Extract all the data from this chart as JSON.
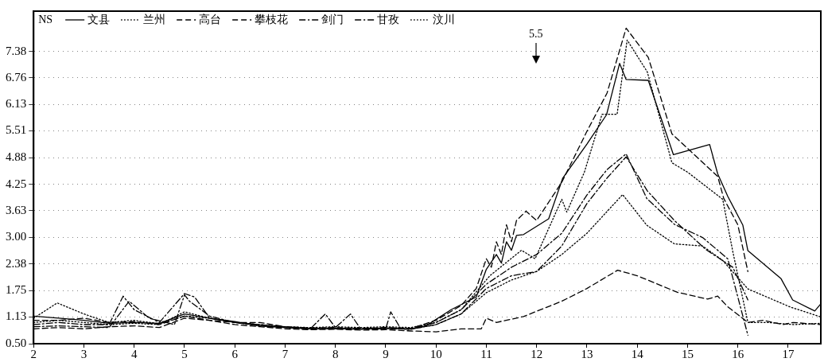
{
  "chart_data": {
    "type": "line",
    "legend_title": "NS",
    "legend": "top left",
    "grid": "y",
    "marker": "none",
    "xlim": [
      2,
      17.65
    ],
    "xticks": [
      2,
      3,
      4,
      5,
      6,
      7,
      8,
      9,
      10,
      11,
      12,
      13,
      14,
      15,
      16,
      17
    ],
    "ylim": [
      0.5,
      8.33
    ],
    "yticks": [
      {
        "value": 0.5,
        "label": "0.50"
      },
      1.13,
      1.75,
      2.38,
      {
        "value": 3,
        "label": "3.00"
      },
      3.63,
      4.25,
      4.88,
      5.51,
      6.13,
      6.76,
      7.38
    ],
    "annotations": [
      "5.5"
    ],
    "series": [
      {
        "name": "文县",
        "color": "#000000",
        "line_style": "solid",
        "x": [
          2,
          2.5,
          3,
          3.5,
          4,
          4.5,
          5,
          5.5,
          6,
          6.5,
          7,
          7.5,
          8,
          8.5,
          9,
          9.5,
          9.8,
          10.3,
          10.8,
          11,
          11.2,
          11.3,
          11.4,
          11.5,
          11.6,
          11.74,
          12.24,
          12.52,
          13,
          13.39,
          13.65,
          13.78,
          14.22,
          14.72,
          15.44,
          15.6,
          15.8,
          16.1,
          16.2,
          16.86,
          17.09,
          17.53,
          17.65
        ],
        "values": [
          1.15,
          1.1,
          1.05,
          0.98,
          1.0,
          0.98,
          1.2,
          1.1,
          1.02,
          0.92,
          0.88,
          0.85,
          0.86,
          0.85,
          0.87,
          0.85,
          0.92,
          1.3,
          1.6,
          2.25,
          2.6,
          2.4,
          2.9,
          2.7,
          3.05,
          3.07,
          3.44,
          4.4,
          5.2,
          5.89,
          7.1,
          6.72,
          6.7,
          4.95,
          5.19,
          4.5,
          3.97,
          3.29,
          2.69,
          2.03,
          1.53,
          1.27,
          1.44
        ]
      },
      {
        "name": "兰州",
        "color": "#000000",
        "line_style": "dotted",
        "x": [
          2,
          2.47,
          3,
          3.5,
          4,
          4.5,
          5,
          5.5,
          6,
          6.5,
          7,
          7.5,
          8,
          8.5,
          9,
          9.5,
          10,
          10.5,
          11.07,
          11.7,
          11.97,
          12.5,
          12.6,
          12.95,
          13.3,
          13.6,
          13.8,
          14.2,
          14.69,
          15,
          15.7,
          15.9,
          16.2,
          16.6,
          17.1,
          17.65
        ],
        "values": [
          1.1,
          1.46,
          1.2,
          1.0,
          1.05,
          0.97,
          1.15,
          1.1,
          1.0,
          0.95,
          0.9,
          0.88,
          0.9,
          0.88,
          0.9,
          0.88,
          1.0,
          1.3,
          2.1,
          2.7,
          2.5,
          3.9,
          3.6,
          4.54,
          5.9,
          5.9,
          7.65,
          6.9,
          4.76,
          4.54,
          3.9,
          2.67,
          1.0,
          1.0,
          0.95,
          0.98
        ]
      },
      {
        "name": "高台",
        "color": "#000000",
        "line_style": "dashed",
        "x": [
          2,
          2.5,
          3,
          3.5,
          4,
          4.5,
          5,
          5.5,
          6,
          6.5,
          7,
          7.5,
          8,
          8.5,
          9,
          9.5,
          10,
          10.5,
          10.8,
          11,
          11.1,
          11.2,
          11.3,
          11.4,
          11.5,
          11.6,
          11.79,
          12,
          12.5,
          13,
          13.4,
          13.78,
          14.22,
          14.69,
          15.6,
          15.72,
          16,
          16.2
        ],
        "values": [
          1.05,
          1.05,
          1.1,
          1.0,
          1.02,
          0.95,
          1.15,
          1.05,
          1.0,
          1.0,
          0.9,
          0.87,
          0.88,
          0.86,
          0.88,
          0.86,
          1.05,
          1.4,
          1.8,
          2.5,
          2.3,
          2.9,
          2.6,
          3.3,
          2.9,
          3.4,
          3.62,
          3.4,
          4.3,
          5.5,
          6.4,
          7.93,
          7.24,
          5.44,
          4.44,
          3.92,
          3.3,
          2.2
        ]
      },
      {
        "name": "攀枝花",
        "color": "#000000",
        "line_style": "dashed",
        "x": [
          2,
          2.5,
          3,
          3.5,
          4,
          4.5,
          5,
          5.5,
          6,
          6.5,
          7,
          7.5,
          8,
          8.5,
          9,
          9.5,
          10,
          10.5,
          10.9,
          11,
          11.2,
          11.74,
          12.5,
          13,
          13.61,
          14,
          14.8,
          15.4,
          15.6,
          15.8,
          16.2,
          16.5,
          16.9,
          17.1,
          17.65
        ],
        "values": [
          0.85,
          0.88,
          0.85,
          0.9,
          0.92,
          0.88,
          1.1,
          1.05,
          0.95,
          0.9,
          0.85,
          0.83,
          0.84,
          0.82,
          0.83,
          0.8,
          0.78,
          0.85,
          0.85,
          1.1,
          1.0,
          1.14,
          1.5,
          1.8,
          2.23,
          2.1,
          1.71,
          1.55,
          1.62,
          1.37,
          1.0,
          1.05,
          0.95,
          1.0,
          0.95
        ]
      },
      {
        "name": "剑门",
        "color": "#000000",
        "line_style": "dashdot",
        "x": [
          2,
          2.5,
          3,
          3.5,
          3.78,
          4,
          4.5,
          5,
          5.2,
          5.5,
          6,
          6.5,
          7,
          7.5,
          7.8,
          8,
          8.3,
          8.5,
          9,
          9.1,
          9.3,
          9.5,
          10,
          10.5,
          11,
          11.5,
          12,
          12.5,
          13,
          13.4,
          13.78,
          14.19,
          14.74,
          15.3,
          15.8,
          16.2
        ],
        "values": [
          0.95,
          1.0,
          0.95,
          0.95,
          1.62,
          1.3,
          1.0,
          1.68,
          1.6,
          1.1,
          1.0,
          0.95,
          0.9,
          0.85,
          1.2,
          0.88,
          1.2,
          0.85,
          0.85,
          1.25,
          0.85,
          0.85,
          1.0,
          1.3,
          1.9,
          2.3,
          2.6,
          3.1,
          4.0,
          4.6,
          4.97,
          3.92,
          3.31,
          3.0,
          2.5,
          0.7
        ]
      },
      {
        "name": "甘孜",
        "color": "#000000",
        "line_style": "dashdot",
        "x": [
          2,
          2.5,
          3,
          3.5,
          3.9,
          4.3,
          4.8,
          5,
          5.1,
          5.5,
          6,
          6.5,
          7,
          7.5,
          8,
          8.5,
          9,
          9.5,
          10,
          10.5,
          11,
          11.5,
          12,
          12.5,
          13,
          13.4,
          13.78,
          14.2,
          14.74,
          15.36,
          15.9,
          16.2
        ],
        "values": [
          0.9,
          0.92,
          0.9,
          0.88,
          1.5,
          1.1,
          0.95,
          1.65,
          1.5,
          1.15,
          1.0,
          0.92,
          0.88,
          0.85,
          0.86,
          0.84,
          0.86,
          0.84,
          0.95,
          1.2,
          1.8,
          2.1,
          2.2,
          2.8,
          3.8,
          4.4,
          4.9,
          4.1,
          3.4,
          2.72,
          2.3,
          1.53
        ]
      },
      {
        "name": "汶川",
        "color": "#000000",
        "line_style": "dotted",
        "x": [
          2,
          2.5,
          3,
          3.5,
          4,
          4.5,
          5,
          5.5,
          6,
          6.5,
          7,
          7.5,
          8,
          8.5,
          9,
          9.5,
          10,
          10.5,
          11,
          11.5,
          12,
          12.5,
          13,
          13.71,
          14.19,
          14.74,
          15.3,
          15.7,
          16.2,
          17.05,
          17.65
        ],
        "values": [
          1.0,
          1.05,
          1.0,
          0.95,
          0.98,
          0.95,
          1.25,
          1.1,
          1.0,
          0.93,
          0.88,
          0.86,
          0.87,
          0.85,
          0.86,
          0.84,
          0.95,
          1.2,
          1.7,
          2.0,
          2.2,
          2.6,
          3.1,
          4.01,
          3.29,
          2.85,
          2.8,
          2.46,
          1.79,
          1.36,
          1.13
        ]
      }
    ]
  }
}
